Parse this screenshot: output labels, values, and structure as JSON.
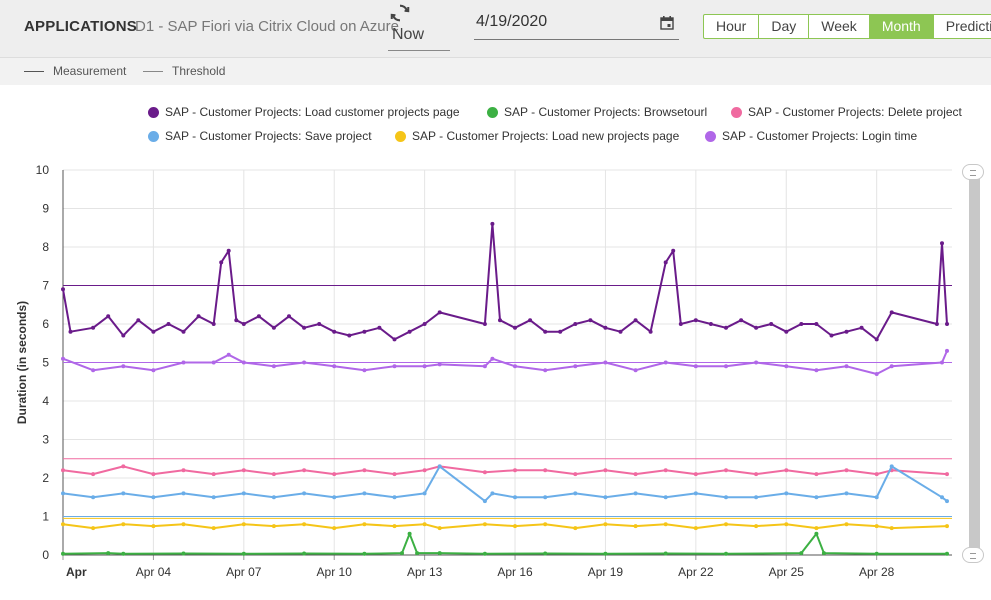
{
  "header": {
    "section_title": "APPLICATIONS",
    "app_name": "D1 - SAP Fiori via Citrix Cloud on Azure",
    "now_label": "Now",
    "date_value": "4/19/2020",
    "ranges": [
      "Hour",
      "Day",
      "Week",
      "Month",
      "Predicti"
    ],
    "active_range": "Month",
    "accent_color": "#8dc653"
  },
  "line_types": {
    "measurement": "Measurement",
    "threshold": "Threshold"
  },
  "chart_data": {
    "type": "line",
    "ylabel": "Duration (in seconds)",
    "ylim": [
      0,
      10
    ],
    "yticks": [
      0,
      1,
      2,
      3,
      4,
      5,
      6,
      7,
      8,
      9,
      10
    ],
    "xlim": [
      "2020-04-01",
      "2020-04-30T12:00"
    ],
    "xticks": [
      "Apr",
      "Apr 04",
      "Apr 07",
      "Apr 10",
      "Apr 13",
      "Apr 16",
      "Apr 19",
      "Apr 22",
      "Apr 25",
      "Apr 28"
    ],
    "grid": true,
    "legend_position": "top",
    "series": [
      {
        "name": "SAP - Customer Projects: Load customer projects page",
        "color": "#6a1b8a",
        "threshold": 7.0,
        "points": [
          [
            "2020-04-01T00:00",
            6.9
          ],
          [
            "2020-04-01T06:00",
            5.8
          ],
          [
            "2020-04-02T00:00",
            5.9
          ],
          [
            "2020-04-02T12:00",
            6.2
          ],
          [
            "2020-04-03T00:00",
            5.7
          ],
          [
            "2020-04-03T12:00",
            6.1
          ],
          [
            "2020-04-04T00:00",
            5.8
          ],
          [
            "2020-04-04T12:00",
            6.0
          ],
          [
            "2020-04-05T00:00",
            5.8
          ],
          [
            "2020-04-05T12:00",
            6.2
          ],
          [
            "2020-04-06T00:00",
            6.0
          ],
          [
            "2020-04-06T06:00",
            7.6
          ],
          [
            "2020-04-06T12:00",
            7.9
          ],
          [
            "2020-04-06T18:00",
            6.1
          ],
          [
            "2020-04-07T00:00",
            6.0
          ],
          [
            "2020-04-07T12:00",
            6.2
          ],
          [
            "2020-04-08T00:00",
            5.9
          ],
          [
            "2020-04-08T12:00",
            6.2
          ],
          [
            "2020-04-09T00:00",
            5.9
          ],
          [
            "2020-04-09T12:00",
            6.0
          ],
          [
            "2020-04-10T00:00",
            5.8
          ],
          [
            "2020-04-10T12:00",
            5.7
          ],
          [
            "2020-04-11T00:00",
            5.8
          ],
          [
            "2020-04-11T12:00",
            5.9
          ],
          [
            "2020-04-12T00:00",
            5.6
          ],
          [
            "2020-04-12T12:00",
            5.8
          ],
          [
            "2020-04-13T00:00",
            6.0
          ],
          [
            "2020-04-13T12:00",
            6.3
          ],
          [
            "2020-04-15T00:00",
            6.0
          ],
          [
            "2020-04-15T06:00",
            8.6
          ],
          [
            "2020-04-15T12:00",
            6.1
          ],
          [
            "2020-04-16T00:00",
            5.9
          ],
          [
            "2020-04-16T12:00",
            6.1
          ],
          [
            "2020-04-17T00:00",
            5.8
          ],
          [
            "2020-04-17T12:00",
            5.8
          ],
          [
            "2020-04-18T00:00",
            6.0
          ],
          [
            "2020-04-18T12:00",
            6.1
          ],
          [
            "2020-04-19T00:00",
            5.9
          ],
          [
            "2020-04-19T12:00",
            5.8
          ],
          [
            "2020-04-20T00:00",
            6.1
          ],
          [
            "2020-04-20T12:00",
            5.8
          ],
          [
            "2020-04-21T00:00",
            7.6
          ],
          [
            "2020-04-21T06:00",
            7.9
          ],
          [
            "2020-04-21T12:00",
            6.0
          ],
          [
            "2020-04-22T00:00",
            6.1
          ],
          [
            "2020-04-22T12:00",
            6.0
          ],
          [
            "2020-04-23T00:00",
            5.9
          ],
          [
            "2020-04-23T12:00",
            6.1
          ],
          [
            "2020-04-24T00:00",
            5.9
          ],
          [
            "2020-04-24T12:00",
            6.0
          ],
          [
            "2020-04-25T00:00",
            5.8
          ],
          [
            "2020-04-25T12:00",
            6.0
          ],
          [
            "2020-04-26T00:00",
            6.0
          ],
          [
            "2020-04-26T12:00",
            5.7
          ],
          [
            "2020-04-27T00:00",
            5.8
          ],
          [
            "2020-04-27T12:00",
            5.9
          ],
          [
            "2020-04-28T00:00",
            5.6
          ],
          [
            "2020-04-28T12:00",
            6.3
          ],
          [
            "2020-04-30T00:00",
            6.0
          ],
          [
            "2020-04-30T04:00",
            8.1
          ],
          [
            "2020-04-30T08:00",
            6.0
          ]
        ]
      },
      {
        "name": "SAP - Customer Projects: Browsetourl",
        "color": "#3cb043",
        "threshold": 0.0,
        "points": [
          [
            "2020-04-01T00:00",
            0.03
          ],
          [
            "2020-04-02T12:00",
            0.05
          ],
          [
            "2020-04-03T00:00",
            0.03
          ],
          [
            "2020-04-05T00:00",
            0.04
          ],
          [
            "2020-04-07T00:00",
            0.03
          ],
          [
            "2020-04-09T00:00",
            0.04
          ],
          [
            "2020-04-11T00:00",
            0.03
          ],
          [
            "2020-04-12T06:00",
            0.05
          ],
          [
            "2020-04-12T12:00",
            0.55
          ],
          [
            "2020-04-12T18:00",
            0.05
          ],
          [
            "2020-04-13T12:00",
            0.05
          ],
          [
            "2020-04-15T00:00",
            0.03
          ],
          [
            "2020-04-17T00:00",
            0.04
          ],
          [
            "2020-04-19T00:00",
            0.03
          ],
          [
            "2020-04-21T00:00",
            0.04
          ],
          [
            "2020-04-23T00:00",
            0.03
          ],
          [
            "2020-04-25T12:00",
            0.05
          ],
          [
            "2020-04-26T00:00",
            0.55
          ],
          [
            "2020-04-26T06:00",
            0.05
          ],
          [
            "2020-04-28T00:00",
            0.03
          ],
          [
            "2020-04-30T08:00",
            0.03
          ]
        ]
      },
      {
        "name": "SAP - Customer Projects: Delete project",
        "color": "#f06aa0",
        "threshold": 2.5,
        "points": [
          [
            "2020-04-01T00:00",
            2.2
          ],
          [
            "2020-04-02T00:00",
            2.1
          ],
          [
            "2020-04-03T00:00",
            2.3
          ],
          [
            "2020-04-04T00:00",
            2.1
          ],
          [
            "2020-04-05T00:00",
            2.2
          ],
          [
            "2020-04-06T00:00",
            2.1
          ],
          [
            "2020-04-07T00:00",
            2.2
          ],
          [
            "2020-04-08T00:00",
            2.1
          ],
          [
            "2020-04-09T00:00",
            2.2
          ],
          [
            "2020-04-10T00:00",
            2.1
          ],
          [
            "2020-04-11T00:00",
            2.2
          ],
          [
            "2020-04-12T00:00",
            2.1
          ],
          [
            "2020-04-13T00:00",
            2.2
          ],
          [
            "2020-04-13T12:00",
            2.3
          ],
          [
            "2020-04-15T00:00",
            2.15
          ],
          [
            "2020-04-16T00:00",
            2.2
          ],
          [
            "2020-04-17T00:00",
            2.2
          ],
          [
            "2020-04-18T00:00",
            2.1
          ],
          [
            "2020-04-19T00:00",
            2.2
          ],
          [
            "2020-04-20T00:00",
            2.1
          ],
          [
            "2020-04-21T00:00",
            2.2
          ],
          [
            "2020-04-22T00:00",
            2.1
          ],
          [
            "2020-04-23T00:00",
            2.2
          ],
          [
            "2020-04-24T00:00",
            2.1
          ],
          [
            "2020-04-25T00:00",
            2.2
          ],
          [
            "2020-04-26T00:00",
            2.1
          ],
          [
            "2020-04-27T00:00",
            2.2
          ],
          [
            "2020-04-28T00:00",
            2.1
          ],
          [
            "2020-04-28T12:00",
            2.2
          ],
          [
            "2020-04-30T08:00",
            2.1
          ]
        ]
      },
      {
        "name": "SAP - Customer Projects: Save project",
        "color": "#6aade8",
        "threshold": 1.0,
        "points": [
          [
            "2020-04-01T00:00",
            1.6
          ],
          [
            "2020-04-02T00:00",
            1.5
          ],
          [
            "2020-04-03T00:00",
            1.6
          ],
          [
            "2020-04-04T00:00",
            1.5
          ],
          [
            "2020-04-05T00:00",
            1.6
          ],
          [
            "2020-04-06T00:00",
            1.5
          ],
          [
            "2020-04-07T00:00",
            1.6
          ],
          [
            "2020-04-08T00:00",
            1.5
          ],
          [
            "2020-04-09T00:00",
            1.6
          ],
          [
            "2020-04-10T00:00",
            1.5
          ],
          [
            "2020-04-11T00:00",
            1.6
          ],
          [
            "2020-04-12T00:00",
            1.5
          ],
          [
            "2020-04-13T00:00",
            1.6
          ],
          [
            "2020-04-13T12:00",
            2.3
          ],
          [
            "2020-04-15T00:00",
            1.4
          ],
          [
            "2020-04-15T06:00",
            1.6
          ],
          [
            "2020-04-16T00:00",
            1.5
          ],
          [
            "2020-04-17T00:00",
            1.5
          ],
          [
            "2020-04-18T00:00",
            1.6
          ],
          [
            "2020-04-19T00:00",
            1.5
          ],
          [
            "2020-04-20T00:00",
            1.6
          ],
          [
            "2020-04-21T00:00",
            1.5
          ],
          [
            "2020-04-22T00:00",
            1.6
          ],
          [
            "2020-04-23T00:00",
            1.5
          ],
          [
            "2020-04-24T00:00",
            1.5
          ],
          [
            "2020-04-25T00:00",
            1.6
          ],
          [
            "2020-04-26T00:00",
            1.5
          ],
          [
            "2020-04-27T00:00",
            1.6
          ],
          [
            "2020-04-28T00:00",
            1.5
          ],
          [
            "2020-04-28T12:00",
            2.3
          ],
          [
            "2020-04-30T04:00",
            1.5
          ],
          [
            "2020-04-30T08:00",
            1.4
          ]
        ]
      },
      {
        "name": "SAP - Customer Projects: Load new projects page",
        "color": "#f5c518",
        "threshold": 0.95,
        "points": [
          [
            "2020-04-01T00:00",
            0.8
          ],
          [
            "2020-04-02T00:00",
            0.7
          ],
          [
            "2020-04-03T00:00",
            0.8
          ],
          [
            "2020-04-04T00:00",
            0.75
          ],
          [
            "2020-04-05T00:00",
            0.8
          ],
          [
            "2020-04-06T00:00",
            0.7
          ],
          [
            "2020-04-07T00:00",
            0.8
          ],
          [
            "2020-04-08T00:00",
            0.75
          ],
          [
            "2020-04-09T00:00",
            0.8
          ],
          [
            "2020-04-10T00:00",
            0.7
          ],
          [
            "2020-04-11T00:00",
            0.8
          ],
          [
            "2020-04-12T00:00",
            0.75
          ],
          [
            "2020-04-13T00:00",
            0.8
          ],
          [
            "2020-04-13T12:00",
            0.7
          ],
          [
            "2020-04-15T00:00",
            0.8
          ],
          [
            "2020-04-16T00:00",
            0.75
          ],
          [
            "2020-04-17T00:00",
            0.8
          ],
          [
            "2020-04-18T00:00",
            0.7
          ],
          [
            "2020-04-19T00:00",
            0.8
          ],
          [
            "2020-04-20T00:00",
            0.75
          ],
          [
            "2020-04-21T00:00",
            0.8
          ],
          [
            "2020-04-22T00:00",
            0.7
          ],
          [
            "2020-04-23T00:00",
            0.8
          ],
          [
            "2020-04-24T00:00",
            0.75
          ],
          [
            "2020-04-25T00:00",
            0.8
          ],
          [
            "2020-04-26T00:00",
            0.7
          ],
          [
            "2020-04-27T00:00",
            0.8
          ],
          [
            "2020-04-28T00:00",
            0.75
          ],
          [
            "2020-04-28T12:00",
            0.7
          ],
          [
            "2020-04-30T08:00",
            0.75
          ]
        ]
      },
      {
        "name": "SAP - Customer Projects: Login time",
        "color": "#b067e8",
        "threshold": 5.0,
        "points": [
          [
            "2020-04-01T00:00",
            5.1
          ],
          [
            "2020-04-02T00:00",
            4.8
          ],
          [
            "2020-04-03T00:00",
            4.9
          ],
          [
            "2020-04-04T00:00",
            4.8
          ],
          [
            "2020-04-05T00:00",
            5.0
          ],
          [
            "2020-04-06T00:00",
            5.0
          ],
          [
            "2020-04-06T12:00",
            5.2
          ],
          [
            "2020-04-07T00:00",
            5.0
          ],
          [
            "2020-04-08T00:00",
            4.9
          ],
          [
            "2020-04-09T00:00",
            5.0
          ],
          [
            "2020-04-10T00:00",
            4.9
          ],
          [
            "2020-04-11T00:00",
            4.8
          ],
          [
            "2020-04-12T00:00",
            4.9
          ],
          [
            "2020-04-13T00:00",
            4.9
          ],
          [
            "2020-04-13T12:00",
            4.95
          ],
          [
            "2020-04-15T00:00",
            4.9
          ],
          [
            "2020-04-15T06:00",
            5.1
          ],
          [
            "2020-04-16T00:00",
            4.9
          ],
          [
            "2020-04-17T00:00",
            4.8
          ],
          [
            "2020-04-18T00:00",
            4.9
          ],
          [
            "2020-04-19T00:00",
            5.0
          ],
          [
            "2020-04-20T00:00",
            4.8
          ],
          [
            "2020-04-21T00:00",
            5.0
          ],
          [
            "2020-04-22T00:00",
            4.9
          ],
          [
            "2020-04-23T00:00",
            4.9
          ],
          [
            "2020-04-24T00:00",
            5.0
          ],
          [
            "2020-04-25T00:00",
            4.9
          ],
          [
            "2020-04-26T00:00",
            4.8
          ],
          [
            "2020-04-27T00:00",
            4.9
          ],
          [
            "2020-04-28T00:00",
            4.7
          ],
          [
            "2020-04-28T12:00",
            4.9
          ],
          [
            "2020-04-30T04:00",
            5.0
          ],
          [
            "2020-04-30T08:00",
            5.3
          ]
        ]
      }
    ]
  }
}
